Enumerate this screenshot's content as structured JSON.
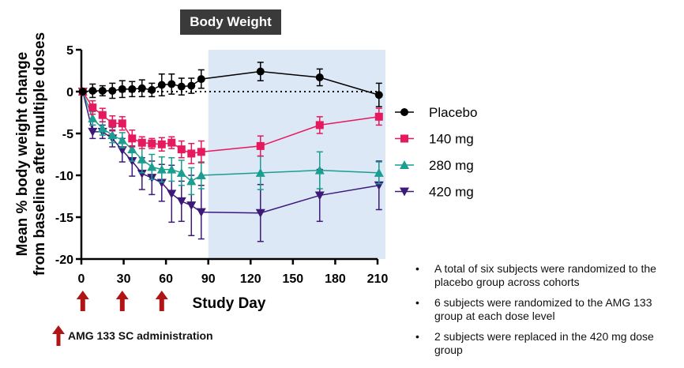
{
  "chart_data": {
    "type": "line",
    "title": "Body Weight",
    "xlabel": "Study Day",
    "ylabel_line1": "Mean % body weight change",
    "ylabel_line2": "from baseline after multiple doses",
    "xlim": [
      0,
      210
    ],
    "ylim": [
      -20,
      5
    ],
    "xticks": [
      0,
      30,
      60,
      90,
      120,
      150,
      180,
      210
    ],
    "yticks": [
      5,
      0,
      -5,
      -10,
      -15,
      -20
    ],
    "shaded_region": [
      90,
      210
    ],
    "reference_line": 0,
    "dose_days": [
      1,
      29,
      57
    ],
    "series": [
      {
        "name": "Placebo",
        "color": "#000000",
        "marker": "circle",
        "x": [
          1,
          8,
          15,
          22,
          29,
          36,
          43,
          50,
          57,
          64,
          71,
          78,
          85,
          127,
          169,
          211
        ],
        "y": [
          0,
          0.1,
          0.1,
          0.1,
          0.3,
          0.3,
          0.4,
          0.2,
          0.8,
          0.9,
          0.6,
          0.7,
          1.5,
          2.4,
          1.7,
          -0.4
        ],
        "err": [
          0,
          0.8,
          0.6,
          0.9,
          1.0,
          0.9,
          1.0,
          0.8,
          1.3,
          1.2,
          1.0,
          0.9,
          1.1,
          1.1,
          1.0,
          1.4
        ]
      },
      {
        "name": "140 mg",
        "color": "#e6195e",
        "marker": "square",
        "x": [
          1,
          8,
          15,
          22,
          29,
          36,
          43,
          50,
          57,
          64,
          71,
          78,
          85,
          127,
          169,
          211
        ],
        "y": [
          0,
          -1.9,
          -2.8,
          -3.8,
          -3.8,
          -5.6,
          -6.1,
          -6.2,
          -6.3,
          -6.1,
          -6.9,
          -7.4,
          -7.2,
          -6.5,
          -4.0,
          -3.0
        ],
        "err": [
          0,
          0.8,
          0.8,
          0.9,
          0.8,
          1.0,
          0.7,
          0.6,
          0.8,
          0.7,
          1.0,
          1.2,
          1.3,
          1.2,
          1.0,
          1.0
        ]
      },
      {
        "name": "280 mg",
        "color": "#1a9e8f",
        "marker": "triangle",
        "x": [
          1,
          8,
          15,
          22,
          29,
          36,
          43,
          50,
          57,
          64,
          71,
          78,
          85,
          127,
          169,
          211
        ],
        "y": [
          0,
          -3.2,
          -4.4,
          -5.2,
          -5.8,
          -6.9,
          -8.1,
          -9.0,
          -9.3,
          -9.3,
          -9.7,
          -10.7,
          -10.0,
          -9.7,
          -9.4,
          -9.7
        ],
        "err": [
          0,
          0.8,
          0.8,
          0.9,
          0.9,
          1.4,
          1.6,
          1.5,
          1.5,
          1.4,
          1.5,
          1.6,
          1.6,
          2.0,
          2.2,
          1.3
        ]
      },
      {
        "name": "420 mg",
        "color": "#3d1a7a",
        "marker": "triangle-down",
        "x": [
          1,
          8,
          15,
          22,
          29,
          36,
          43,
          50,
          57,
          64,
          71,
          78,
          85,
          127,
          169,
          211
        ],
        "y": [
          0,
          -4.8,
          -4.8,
          -5.6,
          -7.0,
          -8.3,
          -9.8,
          -10.3,
          -10.9,
          -12.2,
          -13.1,
          -13.6,
          -14.4,
          -14.5,
          -12.4,
          -11.2
        ],
        "err": [
          0,
          0.8,
          0.8,
          1.0,
          1.4,
          1.8,
          1.9,
          2.0,
          2.2,
          3.4,
          2.4,
          3.6,
          3.2,
          3.4,
          3.1,
          2.9
        ]
      }
    ]
  },
  "administration_note": "AMG 133 SC administration",
  "bullets": [
    "A total of six subjects were randomized to the placebo group across cohorts",
    "6 subjects were randomized to the AMG 133 group at each dose level",
    "2 subjects were replaced in the 420 mg dose group"
  ]
}
